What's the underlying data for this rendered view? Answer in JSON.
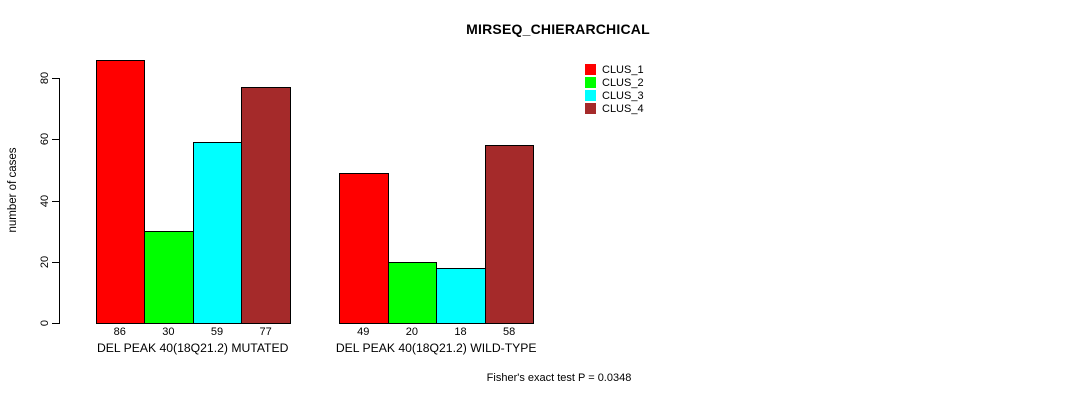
{
  "chart_data": {
    "type": "bar",
    "title": "MIRSEQ_CHIERARCHICAL",
    "ylabel": "number of cases",
    "xlabel": "",
    "categories": [
      "DEL PEAK 40(18Q21.2) MUTATED",
      "DEL PEAK 40(18Q21.2) WILD-TYPE"
    ],
    "series": [
      {
        "name": "CLUS_1",
        "color": "#ff0000",
        "values": [
          86,
          49
        ]
      },
      {
        "name": "CLUS_2",
        "color": "#00ff00",
        "values": [
          30,
          20
        ]
      },
      {
        "name": "CLUS_3",
        "color": "#00ffff",
        "values": [
          59,
          18
        ]
      },
      {
        "name": "CLUS_4",
        "color": "#a52a2a",
        "values": [
          77,
          58
        ]
      }
    ],
    "yticks": [
      0,
      20,
      40,
      60,
      80
    ],
    "ylim": [
      0,
      86
    ],
    "grid": false,
    "bar_value_labels_shown": true,
    "legend_position": "top-right",
    "annotation": "Fisher's exact test P = 0.0348"
  },
  "colors": {
    "background": "#ffffff",
    "axis": "#000000",
    "text": "#000000"
  }
}
